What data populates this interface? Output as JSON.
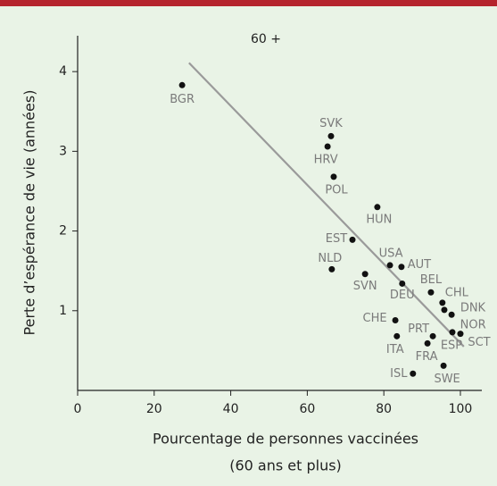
{
  "chart_data": {
    "type": "scatter",
    "title": "60 +",
    "x_label": "Pourcentage de personnes vaccinées",
    "x_label_2": "(60 ans et plus)",
    "y_label": "Perte d’espérance de vie (années)",
    "labels": [
      "BGR",
      "SVK",
      "HRV",
      "POL",
      "HUN",
      "EST",
      "NLD",
      "SVN",
      "USA",
      "AUT",
      "DEU",
      "BEL",
      "CHL",
      "DNK",
      "NOR",
      "SCT",
      "ESP",
      "CHE",
      "PRT",
      "ITA",
      "FRA",
      "ISL",
      "SWE"
    ],
    "x": [
      27.3,
      66.2,
      65.3,
      66.9,
      78.3,
      71.8,
      66.4,
      75.1,
      81.6,
      84.6,
      84.8,
      92.3,
      95.3,
      95.8,
      97.7,
      100,
      97.9,
      83.0,
      92.8,
      83.4,
      91.4,
      87.6,
      95.6
    ],
    "values": [
      3.83,
      3.19,
      3.06,
      2.68,
      2.3,
      1.89,
      1.52,
      1.46,
      1.57,
      1.55,
      1.34,
      1.23,
      1.1,
      1.01,
      0.95,
      0.71,
      0.73,
      0.88,
      0.68,
      0.68,
      0.59,
      0.21,
      0.31
    ],
    "color": "#111111",
    "trend": {
      "x": [
        29.1,
        100.9
      ],
      "y": [
        4.11,
        0.55
      ],
      "color": "#9a9a9a"
    },
    "xlim": [
      0,
      105.6
    ],
    "ylim": [
      0,
      4.45
    ],
    "xticks": [
      0,
      20,
      40,
      60,
      80,
      100
    ],
    "yticks": [
      1,
      2,
      3,
      4
    ]
  }
}
